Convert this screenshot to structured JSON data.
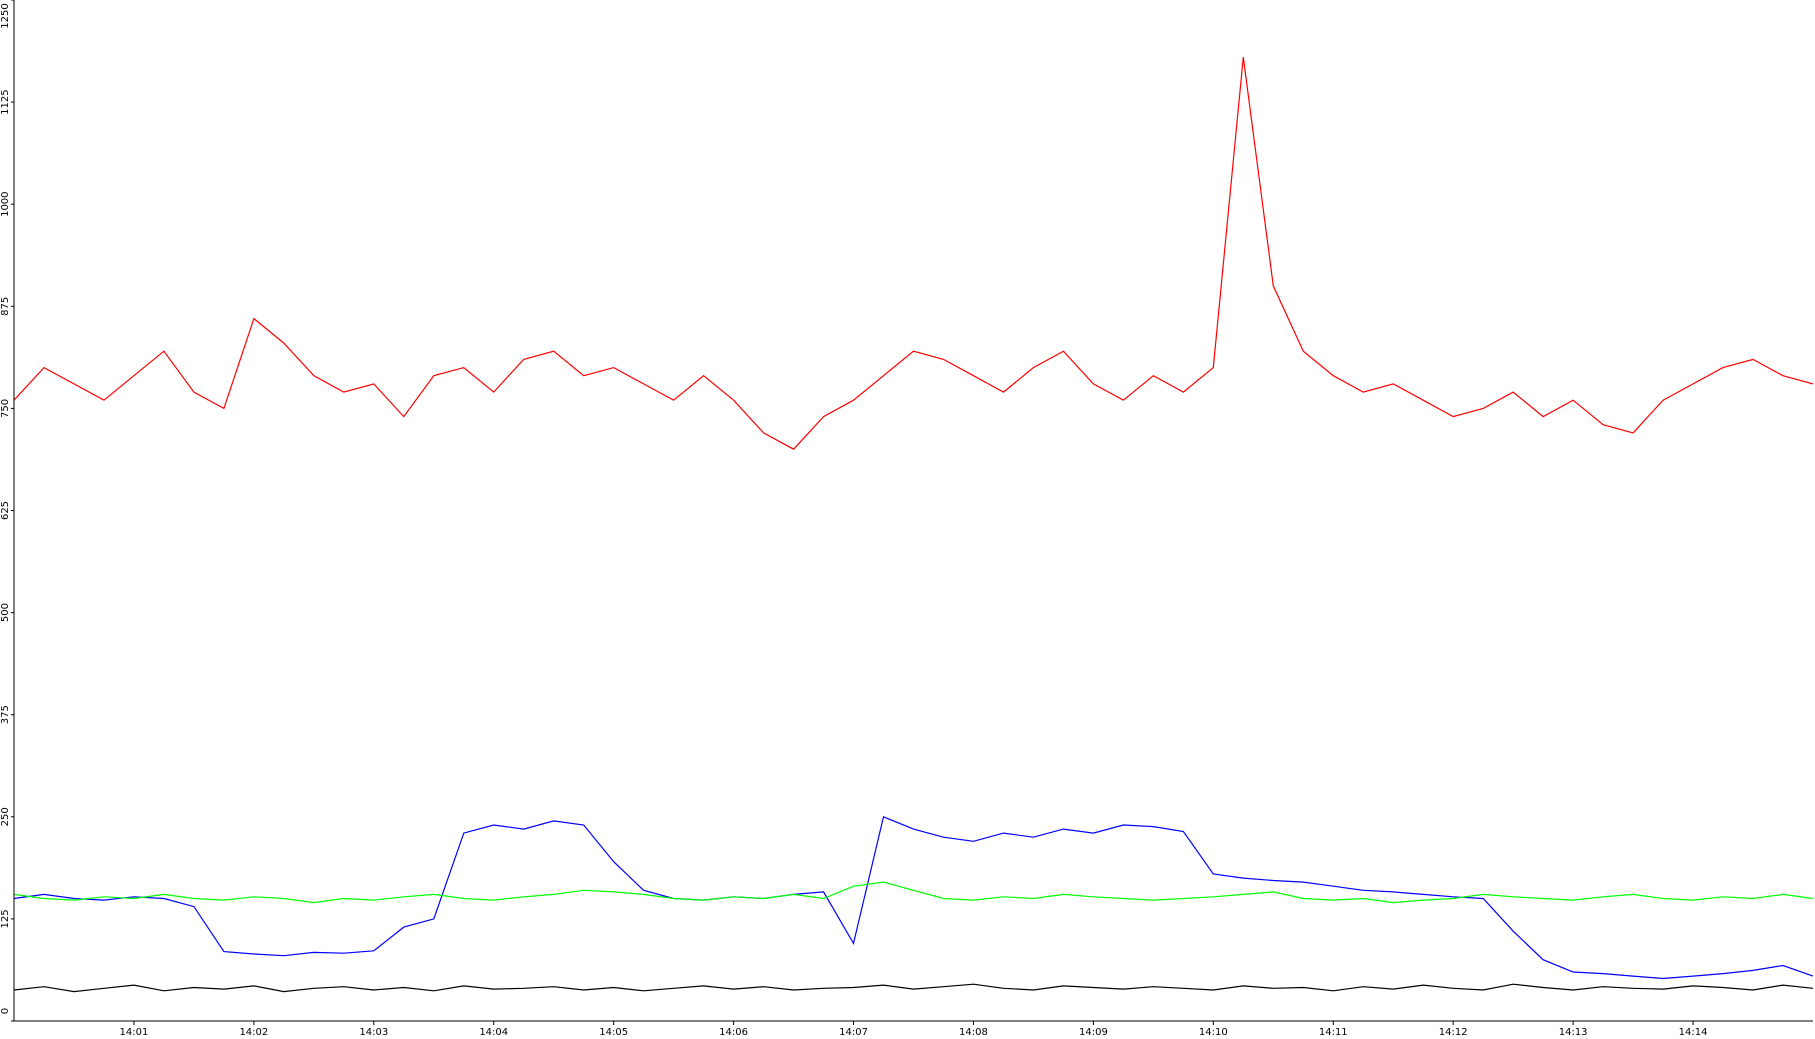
{
  "chart_data": {
    "type": "line",
    "x": [
      "14:00:00",
      "14:00:15",
      "14:00:30",
      "14:00:45",
      "14:01:00",
      "14:01:15",
      "14:01:30",
      "14:01:45",
      "14:02:00",
      "14:02:15",
      "14:02:30",
      "14:02:45",
      "14:03:00",
      "14:03:15",
      "14:03:30",
      "14:03:45",
      "14:04:00",
      "14:04:15",
      "14:04:30",
      "14:04:45",
      "14:05:00",
      "14:05:15",
      "14:05:30",
      "14:05:45",
      "14:06:00",
      "14:06:15",
      "14:06:30",
      "14:06:45",
      "14:07:00",
      "14:07:15",
      "14:07:30",
      "14:07:45",
      "14:08:00",
      "14:08:15",
      "14:08:30",
      "14:08:45",
      "14:09:00",
      "14:09:15",
      "14:09:30",
      "14:09:45",
      "14:10:00",
      "14:10:15",
      "14:10:30",
      "14:10:45",
      "14:11:00",
      "14:11:15",
      "14:11:30",
      "14:11:45",
      "14:12:00",
      "14:12:15",
      "14:12:30",
      "14:12:45",
      "14:13:00",
      "14:13:15",
      "14:13:30",
      "14:13:45",
      "14:14:00",
      "14:14:15",
      "14:14:30",
      "14:14:45",
      "14:15:00"
    ],
    "series": [
      {
        "color": "#ff0000",
        "values": [
          760,
          800,
          780,
          760,
          790,
          820,
          770,
          750,
          860,
          830,
          790,
          770,
          780,
          740,
          790,
          800,
          770,
          810,
          820,
          790,
          800,
          780,
          760,
          790,
          760,
          720,
          700,
          740,
          760,
          790,
          820,
          810,
          790,
          770,
          800,
          820,
          780,
          760,
          790,
          770,
          800,
          1180,
          900,
          820,
          790,
          770,
          780,
          760,
          740,
          750,
          770,
          740,
          760,
          730,
          720,
          760,
          780,
          800,
          810,
          790,
          780
        ]
      },
      {
        "color": "#0000ff",
        "values": [
          150,
          155,
          150,
          148,
          152,
          150,
          140,
          85,
          82,
          80,
          84,
          83,
          86,
          115,
          125,
          230,
          240,
          235,
          245,
          240,
          195,
          160,
          150,
          148,
          152,
          150,
          155,
          158,
          95,
          250,
          235,
          225,
          220,
          230,
          225,
          235,
          230,
          240,
          238,
          232,
          180,
          175,
          172,
          170,
          165,
          160,
          158,
          155,
          152,
          150,
          110,
          75,
          60,
          58,
          55,
          52,
          55,
          58,
          62,
          68,
          55
        ]
      },
      {
        "color": "#00ff00",
        "values": [
          155,
          150,
          148,
          152,
          150,
          155,
          150,
          148,
          152,
          150,
          145,
          150,
          148,
          152,
          155,
          150,
          148,
          152,
          155,
          160,
          158,
          155,
          150,
          148,
          152,
          150,
          155,
          150,
          165,
          170,
          160,
          150,
          148,
          152,
          150,
          155,
          152,
          150,
          148,
          150,
          152,
          155,
          158,
          150,
          148,
          150,
          145,
          148,
          150,
          155,
          152,
          150,
          148,
          152,
          155,
          150,
          148,
          152,
          150,
          155,
          150
        ]
      },
      {
        "color": "#000000",
        "values": [
          38,
          42,
          36,
          40,
          44,
          37,
          41,
          39,
          43,
          36,
          40,
          42,
          38,
          41,
          37,
          43,
          39,
          40,
          42,
          38,
          41,
          37,
          40,
          43,
          39,
          42,
          38,
          40,
          41,
          44,
          39,
          42,
          45,
          40,
          38,
          43,
          41,
          39,
          42,
          40,
          38,
          43,
          40,
          41,
          37,
          42,
          39,
          44,
          40,
          38,
          45,
          41,
          38,
          42,
          40,
          39,
          43,
          41,
          38,
          44,
          40
        ]
      }
    ],
    "xlim": [
      "14:00:00",
      "14:15:00"
    ],
    "xticks": [
      "14:01",
      "14:02",
      "14:03",
      "14:04",
      "14:05",
      "14:06",
      "14:07",
      "14:08",
      "14:09",
      "14:10",
      "14:11",
      "14:12",
      "14:13",
      "14:14"
    ],
    "ylim": [
      0,
      1250
    ],
    "yticks": [
      0,
      125,
      250,
      375,
      500,
      625,
      750,
      875,
      1000,
      1125,
      1250
    ]
  }
}
